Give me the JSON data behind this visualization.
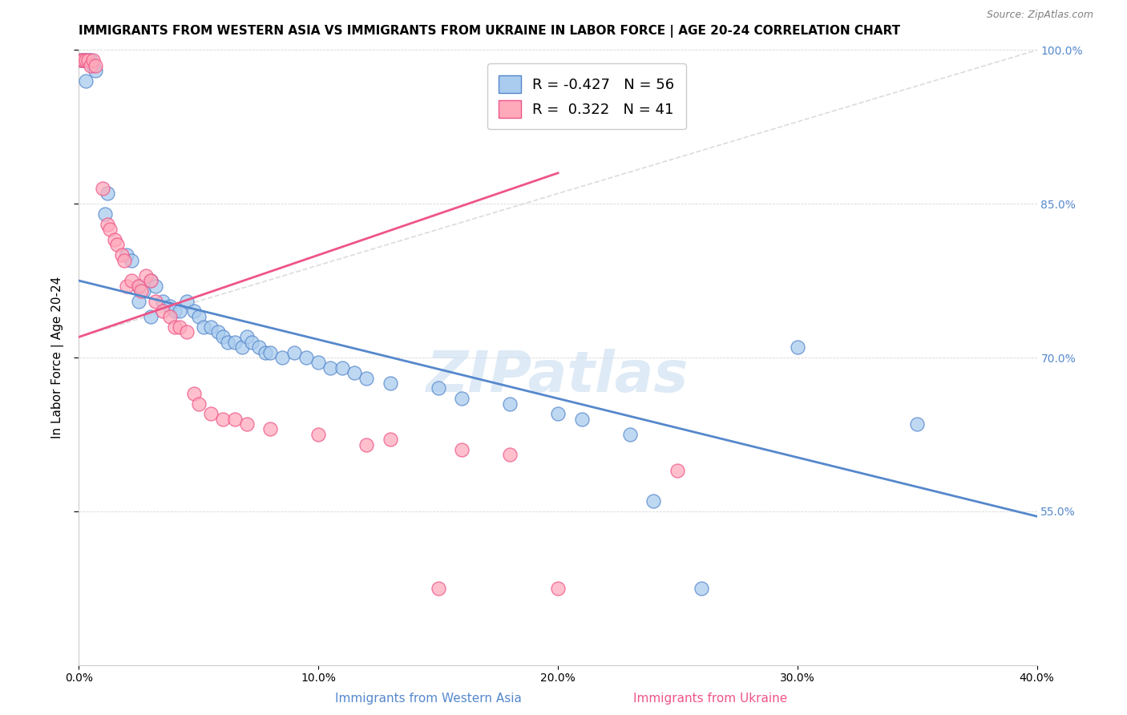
{
  "title": "IMMIGRANTS FROM WESTERN ASIA VS IMMIGRANTS FROM UKRAINE IN LABOR FORCE | AGE 20-24 CORRELATION CHART",
  "source": "Source: ZipAtlas.com",
  "xlabel_blue": "Immigrants from Western Asia",
  "xlabel_pink": "Immigrants from Ukraine",
  "ylabel": "In Labor Force | Age 20-24",
  "x_min": 0.0,
  "x_max": 0.4,
  "y_min": 0.4,
  "y_max": 1.0,
  "blue_R": -0.427,
  "blue_N": 56,
  "pink_R": 0.322,
  "pink_N": 41,
  "blue_scatter": [
    [
      0.001,
      0.99
    ],
    [
      0.002,
      0.99
    ],
    [
      0.003,
      0.99
    ],
    [
      0.004,
      0.99
    ],
    [
      0.005,
      0.99
    ],
    [
      0.006,
      0.985
    ],
    [
      0.007,
      0.98
    ],
    [
      0.003,
      0.97
    ],
    [
      0.012,
      0.86
    ],
    [
      0.011,
      0.84
    ],
    [
      0.02,
      0.8
    ],
    [
      0.022,
      0.795
    ],
    [
      0.025,
      0.77
    ],
    [
      0.027,
      0.765
    ],
    [
      0.03,
      0.775
    ],
    [
      0.032,
      0.77
    ],
    [
      0.035,
      0.755
    ],
    [
      0.038,
      0.75
    ],
    [
      0.04,
      0.745
    ],
    [
      0.042,
      0.745
    ],
    [
      0.045,
      0.755
    ],
    [
      0.048,
      0.745
    ],
    [
      0.05,
      0.74
    ],
    [
      0.052,
      0.73
    ],
    [
      0.055,
      0.73
    ],
    [
      0.058,
      0.725
    ],
    [
      0.06,
      0.72
    ],
    [
      0.062,
      0.715
    ],
    [
      0.065,
      0.715
    ],
    [
      0.068,
      0.71
    ],
    [
      0.07,
      0.72
    ],
    [
      0.072,
      0.715
    ],
    [
      0.075,
      0.71
    ],
    [
      0.078,
      0.705
    ],
    [
      0.08,
      0.705
    ],
    [
      0.085,
      0.7
    ],
    [
      0.09,
      0.705
    ],
    [
      0.095,
      0.7
    ],
    [
      0.1,
      0.695
    ],
    [
      0.105,
      0.69
    ],
    [
      0.11,
      0.69
    ],
    [
      0.115,
      0.685
    ],
    [
      0.12,
      0.68
    ],
    [
      0.13,
      0.675
    ],
    [
      0.15,
      0.67
    ],
    [
      0.16,
      0.66
    ],
    [
      0.18,
      0.655
    ],
    [
      0.2,
      0.645
    ],
    [
      0.21,
      0.64
    ],
    [
      0.23,
      0.625
    ],
    [
      0.24,
      0.56
    ],
    [
      0.26,
      0.475
    ],
    [
      0.3,
      0.71
    ],
    [
      0.35,
      0.635
    ],
    [
      0.025,
      0.755
    ],
    [
      0.03,
      0.74
    ]
  ],
  "pink_scatter": [
    [
      0.001,
      0.99
    ],
    [
      0.002,
      0.99
    ],
    [
      0.003,
      0.99
    ],
    [
      0.004,
      0.99
    ],
    [
      0.005,
      0.985
    ],
    [
      0.006,
      0.99
    ],
    [
      0.007,
      0.985
    ],
    [
      0.01,
      0.865
    ],
    [
      0.012,
      0.83
    ],
    [
      0.013,
      0.825
    ],
    [
      0.015,
      0.815
    ],
    [
      0.016,
      0.81
    ],
    [
      0.018,
      0.8
    ],
    [
      0.019,
      0.795
    ],
    [
      0.02,
      0.77
    ],
    [
      0.022,
      0.775
    ],
    [
      0.025,
      0.77
    ],
    [
      0.026,
      0.765
    ],
    [
      0.028,
      0.78
    ],
    [
      0.03,
      0.775
    ],
    [
      0.032,
      0.755
    ],
    [
      0.035,
      0.745
    ],
    [
      0.038,
      0.74
    ],
    [
      0.04,
      0.73
    ],
    [
      0.042,
      0.73
    ],
    [
      0.045,
      0.725
    ],
    [
      0.048,
      0.665
    ],
    [
      0.05,
      0.655
    ],
    [
      0.055,
      0.645
    ],
    [
      0.06,
      0.64
    ],
    [
      0.065,
      0.64
    ],
    [
      0.07,
      0.635
    ],
    [
      0.08,
      0.63
    ],
    [
      0.1,
      0.625
    ],
    [
      0.12,
      0.615
    ],
    [
      0.15,
      0.475
    ],
    [
      0.16,
      0.61
    ],
    [
      0.18,
      0.605
    ],
    [
      0.2,
      0.475
    ],
    [
      0.25,
      0.59
    ],
    [
      0.13,
      0.62
    ]
  ],
  "blue_line_x": [
    0.0,
    0.4
  ],
  "blue_line_y": [
    0.775,
    0.545
  ],
  "pink_line_x": [
    0.0,
    0.2
  ],
  "pink_line_y": [
    0.72,
    0.88
  ],
  "dash_line_x": [
    0.0,
    0.4
  ],
  "dash_line_y": [
    0.72,
    1.0
  ],
  "blue_color": "#5588CC",
  "pink_color": "#EE5588",
  "blue_face": "#AACCEE",
  "pink_face": "#FFAABB",
  "watermark_color": "#C8DCF0",
  "watermark": "ZIPatlas",
  "title_fontsize": 11,
  "source_fontsize": 9,
  "axis_label_fontsize": 11,
  "tick_fontsize": 10,
  "legend_fontsize": 13,
  "y_ticks": [
    0.55,
    0.7,
    0.85,
    1.0
  ],
  "y_tick_labels": [
    "55.0%",
    "70.0%",
    "85.0%",
    "100.0%"
  ],
  "x_ticks": [
    0.0,
    0.1,
    0.2,
    0.3,
    0.4
  ],
  "x_tick_labels": [
    "0.0%",
    "10.0%",
    "20.0%",
    "30.0%",
    "40.0%"
  ]
}
